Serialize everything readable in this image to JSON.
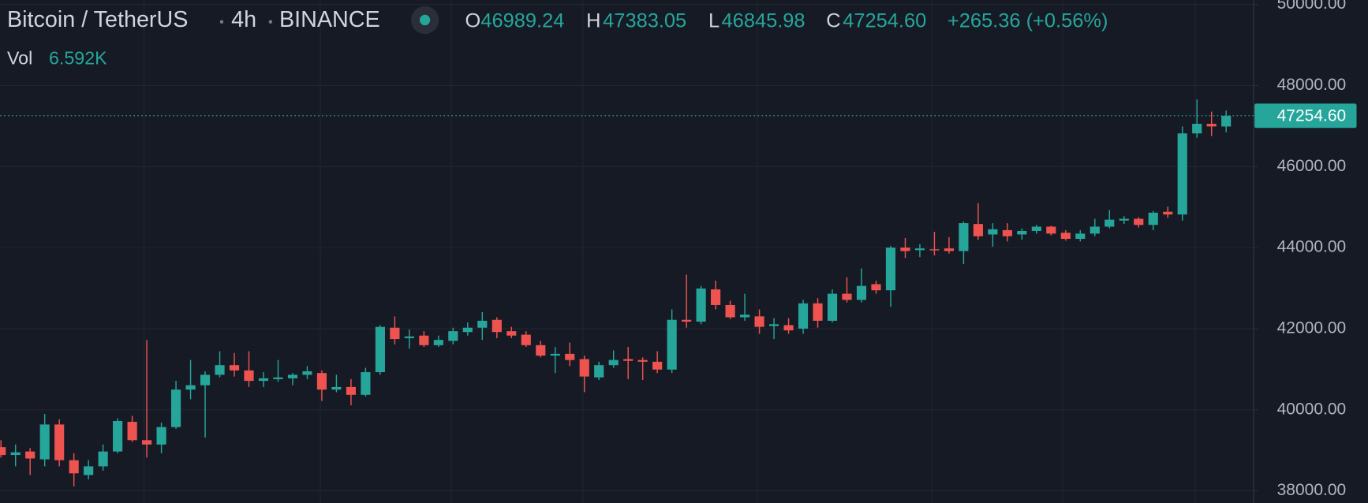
{
  "chart_data": {
    "type": "candlestick",
    "title": "Bitcoin / TetherUS",
    "interval": "4h",
    "exchange": "BINANCE",
    "ohlc": [
      {
        "name": "O",
        "text": "46989.24"
      },
      {
        "name": "H",
        "text": "47383.05"
      },
      {
        "name": "L",
        "text": "46845.98"
      },
      {
        "name": "C",
        "text": "47254.60"
      }
    ],
    "change": "+265.36 (+0.56%)",
    "volume": {
      "name": "Vol",
      "text": "6.592K"
    },
    "last_price": {
      "value": 47254.6,
      "label": "47254.60"
    },
    "up_color": "#26a69a",
    "down_color": "#ef5350",
    "grid": true,
    "ylim": [
      37700,
      50110
    ],
    "yticks": [
      {
        "value": 38000,
        "label": "38000.00"
      },
      {
        "value": 40000,
        "label": "40000.00"
      },
      {
        "value": 42000,
        "label": "42000.00"
      },
      {
        "value": 44000,
        "label": "44000.00"
      },
      {
        "value": 46000,
        "label": "46000.00"
      },
      {
        "value": 48000,
        "label": "48000.00"
      },
      {
        "value": 50000,
        "label": "50000.00"
      }
    ],
    "open": [
      39078,
      38885,
      38971,
      38777,
      39637,
      38756,
      38390,
      38605,
      38971,
      39702,
      39250,
      39143,
      39573,
      40498,
      40605,
      40863,
      41100,
      40971,
      40713,
      40756,
      40777,
      40863,
      40906,
      40498,
      40562,
      40369,
      40928,
      42024,
      41766,
      41830,
      41594,
      41701,
      41917,
      42024,
      42218,
      41938,
      41852,
      41594,
      41336,
      41379,
      41250,
      40799,
      41100,
      41250,
      41228,
      41185,
      40992,
      42218,
      42175,
      42970,
      42583,
      42282,
      42304,
      42067,
      42088,
      42002,
      42626,
      42196,
      42863,
      42712,
      43099,
      42948,
      44002,
      43938,
      43959,
      43981,
      43916,
      44583,
      44325,
      44432,
      44325,
      44411,
      44518,
      44368,
      44217,
      44346,
      44518,
      44668,
      44712,
      44561,
      44884,
      44819,
      46819,
      47055,
      46989.24
    ],
    "high": [
      39250,
      39143,
      39057,
      39895,
      39766,
      38928,
      38756,
      39143,
      39788,
      39852,
      41723,
      39680,
      40713,
      41228,
      40949,
      41444,
      41401,
      41444,
      40928,
      41228,
      40906,
      41078,
      40971,
      40863,
      40756,
      41035,
      42088,
      42304,
      41981,
      41938,
      41830,
      42024,
      42153,
      42411,
      42282,
      42045,
      41938,
      41701,
      41551,
      41658,
      41336,
      41185,
      41465,
      41551,
      41293,
      41444,
      42475,
      43336,
      43056,
      43185,
      42690,
      42863,
      42476,
      42261,
      42261,
      42712,
      42755,
      42970,
      43271,
      43486,
      43185,
      44045,
      44238,
      44088,
      44389,
      44260,
      44647,
      45099,
      44604,
      44604,
      44475,
      44561,
      44540,
      44432,
      44432,
      44712,
      44926,
      44776,
      44754,
      44905,
      45013,
      46990,
      47657,
      47356,
      47383.05
    ],
    "low": [
      38820,
      38605,
      38390,
      38605,
      38605,
      38111,
      38283,
      38498,
      38928,
      39207,
      38820,
      38928,
      39530,
      40261,
      39315,
      40799,
      40820,
      40562,
      40562,
      40691,
      40605,
      40756,
      40218,
      40433,
      40110,
      40326,
      40863,
      41615,
      41508,
      41551,
      41551,
      41615,
      41830,
      41723,
      41766,
      41766,
      41551,
      41293,
      40906,
      41078,
      40433,
      40734,
      41035,
      40756,
      40734,
      40906,
      40906,
      42024,
      42110,
      42476,
      42239,
      42196,
      41873,
      41744,
      41873,
      41873,
      42024,
      42153,
      42648,
      42648,
      42863,
      42540,
      43744,
      43766,
      43809,
      43852,
      43594,
      44196,
      44024,
      44153,
      44196,
      44346,
      44303,
      44174,
      44153,
      44282,
      44475,
      44583,
      44497,
      44432,
      44733,
      44668,
      46711,
      46754,
      46845.98
    ],
    "close": [
      38885,
      38950,
      38799,
      39637,
      38756,
      38433,
      38605,
      38971,
      39723,
      39250,
      39143,
      39573,
      40498,
      40605,
      40863,
      41100,
      40971,
      40713,
      40777,
      40799,
      40863,
      40949,
      40498,
      40562,
      40369,
      40928,
      42045,
      41744,
      41809,
      41594,
      41723,
      41938,
      42024,
      42196,
      41917,
      41830,
      41594,
      41336,
      41379,
      41228,
      40820,
      41100,
      41228,
      41207,
      41185,
      40992,
      42218,
      42175,
      42992,
      42583,
      42282,
      42347,
      42045,
      42110,
      41959,
      42626,
      42196,
      42863,
      42712,
      43056,
      42948,
      44002,
      43916,
      43981,
      43938,
      43916,
      44604,
      44282,
      44454,
      44282,
      44411,
      44518,
      44346,
      44217,
      44346,
      44518,
      44690,
      44712,
      44561,
      44862,
      44819,
      46819,
      47055,
      46990,
      47254.6
    ]
  }
}
